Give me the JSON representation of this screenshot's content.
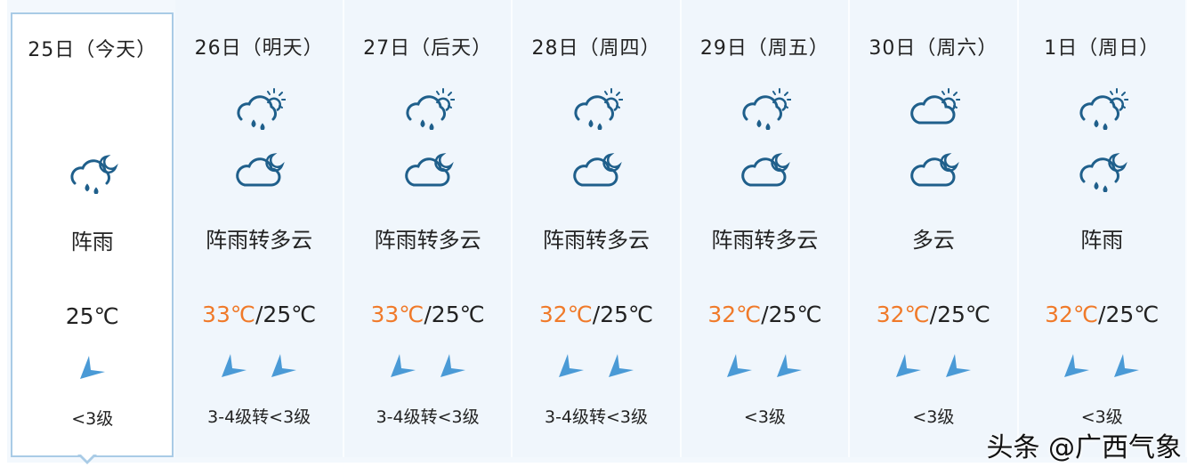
{
  "colors": {
    "accent": "#1f5f8b",
    "high_temp": "#f07a2a",
    "wind_icon": "#4a9ad6",
    "selected_border": "#a9cbe6"
  },
  "days": [
    {
      "date": "25日（今天）",
      "icons": [
        "rain-moon-icon"
      ],
      "desc": "阵雨",
      "high": "",
      "sep": "",
      "low": "25℃",
      "wind_count": 1,
      "wind": "<3级"
    },
    {
      "date": "26日（明天）",
      "icons": [
        "rain-sun-icon",
        "cloud-moon-icon"
      ],
      "desc": "阵雨转多云",
      "high": "33℃",
      "sep": "/",
      "low": "25℃",
      "wind_count": 2,
      "wind": "3-4级转<3级"
    },
    {
      "date": "27日（后天）",
      "icons": [
        "rain-sun-icon",
        "cloud-moon-icon"
      ],
      "desc": "阵雨转多云",
      "high": "33℃",
      "sep": "/",
      "low": "25℃",
      "wind_count": 2,
      "wind": "3-4级转<3级"
    },
    {
      "date": "28日（周四）",
      "icons": [
        "rain-sun-icon",
        "cloud-moon-icon"
      ],
      "desc": "阵雨转多云",
      "high": "32℃",
      "sep": "/",
      "low": "25℃",
      "wind_count": 2,
      "wind": "3-4级转<3级"
    },
    {
      "date": "29日（周五）",
      "icons": [
        "rain-sun-icon",
        "cloud-moon-icon"
      ],
      "desc": "阵雨转多云",
      "high": "32℃",
      "sep": "/",
      "low": "25℃",
      "wind_count": 2,
      "wind": "<3级"
    },
    {
      "date": "30日（周六）",
      "icons": [
        "cloud-sun-icon",
        "cloud-moon-icon"
      ],
      "desc": "多云",
      "high": "32℃",
      "sep": "/",
      "low": "25℃",
      "wind_count": 2,
      "wind": "<3级"
    },
    {
      "date": "1日（周日）",
      "icons": [
        "rain-sun-icon",
        "rain-moon-icon"
      ],
      "desc": "阵雨",
      "high": "32℃",
      "sep": "/",
      "low": "25℃",
      "wind_count": 2,
      "wind": "<3级"
    }
  ],
  "watermark": "头条 @广西气象"
}
